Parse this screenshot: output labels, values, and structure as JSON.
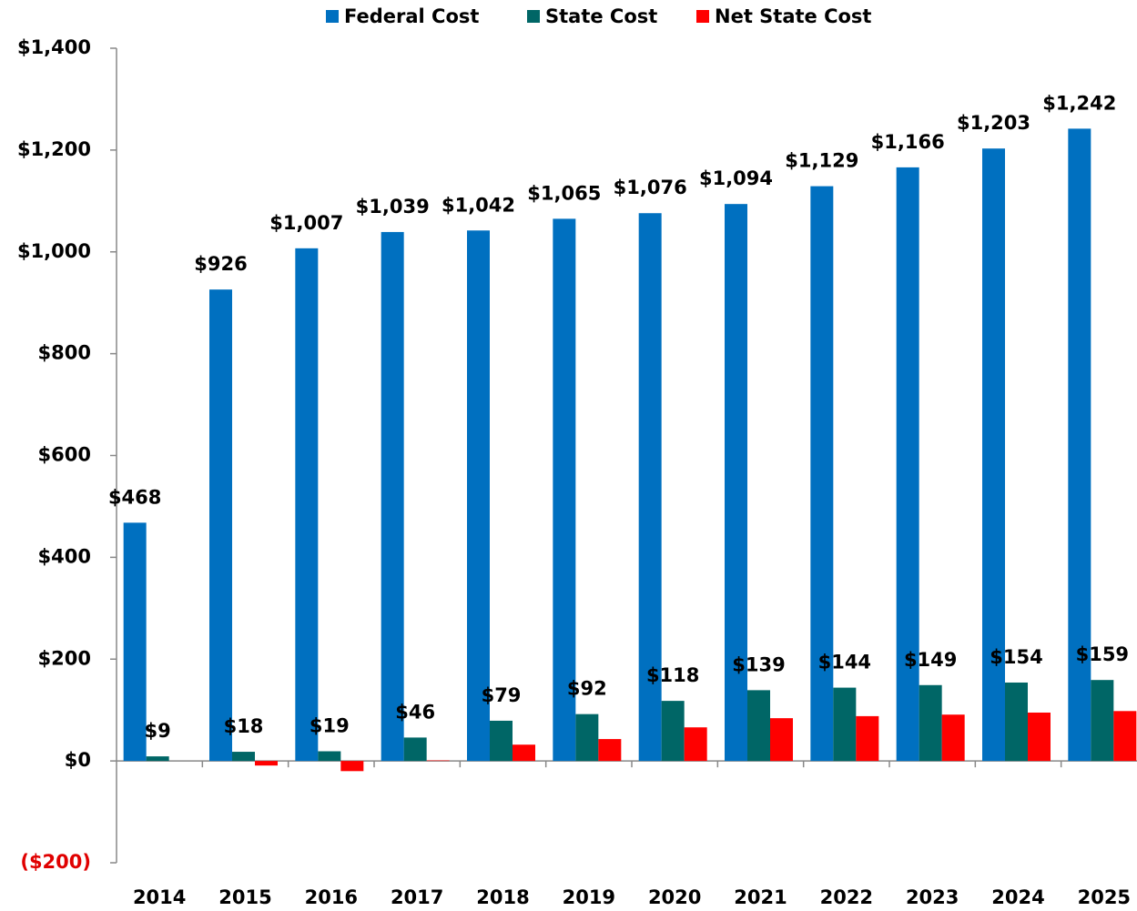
{
  "chart_data": {
    "type": "bar",
    "categories": [
      "2014",
      "2015",
      "2016",
      "2017",
      "2018",
      "2019",
      "2020",
      "2021",
      "2022",
      "2023",
      "2024",
      "2025"
    ],
    "series": [
      {
        "name": "Federal Cost",
        "color": "#0070c0",
        "values": [
          468,
          926,
          1007,
          1039,
          1042,
          1065,
          1076,
          1094,
          1129,
          1166,
          1203,
          1242
        ],
        "value_labels": [
          "$468",
          "$926",
          "$1,007",
          "$1,039",
          "$1,042",
          "$1,065",
          "$1,076",
          "$1,094",
          "$1,129",
          "$1,166",
          "$1,203",
          "$1,242"
        ]
      },
      {
        "name": "State Cost",
        "color": "#006666",
        "values": [
          9,
          18,
          19,
          46,
          79,
          92,
          118,
          139,
          144,
          149,
          154,
          159
        ],
        "value_labels": [
          "$9",
          "$18",
          "$19",
          "$46",
          "$79",
          "$92",
          "$118",
          "$139",
          "$144",
          "$149",
          "$154",
          "$159"
        ]
      },
      {
        "name": "Net State Cost",
        "color": "#ff0000",
        "values": [
          null,
          -9,
          -20,
          1,
          32,
          43,
          66,
          84,
          88,
          91,
          95,
          98
        ]
      }
    ],
    "ylim": [
      -200,
      1400
    ],
    "yticks": [
      {
        "value": -200,
        "label": "($200)"
      },
      {
        "value": 0,
        "label": "$0"
      },
      {
        "value": 200,
        "label": "$200"
      },
      {
        "value": 400,
        "label": "$400"
      },
      {
        "value": 600,
        "label": "$600"
      },
      {
        "value": 800,
        "label": "$800"
      },
      {
        "value": 1000,
        "label": "$1,000"
      },
      {
        "value": 1200,
        "label": "$1,200"
      },
      {
        "value": 1400,
        "label": "$1,400"
      }
    ],
    "legend": "top"
  }
}
